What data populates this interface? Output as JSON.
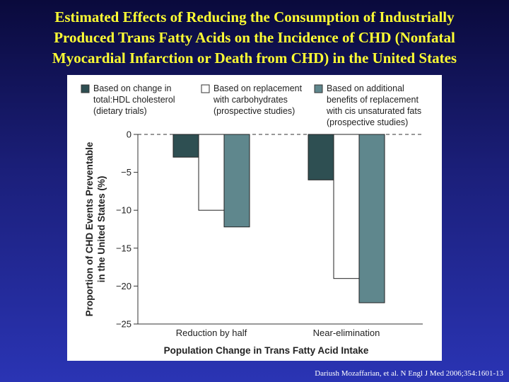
{
  "slide": {
    "title_lines": [
      "Estimated Effects of Reducing the Consumption of Industrially",
      "Produced Trans Fatty Acids on the Incidence of CHD (Nonfatal",
      "Myocardial Infarction or Death from CHD) in the United States"
    ],
    "citation": "Dariush Mozaffarian, et al. N Engl J Med 2006;354:1601-13"
  },
  "chart_data": {
    "type": "bar",
    "categories": [
      "Reduction by half",
      "Near-elimination"
    ],
    "series": [
      {
        "name": "Based on change in total:HDL cholesterol (dietary trials)",
        "legend_lines": [
          "Based on change in",
          "total:HDL cholesterol",
          "(dietary trials)"
        ],
        "color": "#2e4f52",
        "values": [
          -3.0,
          -6.0
        ]
      },
      {
        "name": "Based on replacement with carbohydrates (prospective studies)",
        "legend_lines": [
          "Based on replacement",
          "with carbohydrates",
          "(prospective studies)"
        ],
        "color": "#ffffff",
        "values": [
          -10.0,
          -19.0
        ]
      },
      {
        "name": "Based on additional benefits of replacement with cis unsaturated fats (prospective studies)",
        "legend_lines": [
          "Based on additional",
          "benefits of replacement",
          "with cis unsaturated fats",
          "(prospective studies)"
        ],
        "color": "#5f878d",
        "values": [
          -12.2,
          -22.2
        ]
      }
    ],
    "ylabel_lines": [
      "Proportion of CHD Events Preventable",
      "in the United States (%)"
    ],
    "xlabel": "Population Change in Trans Fatty Acid Intake",
    "ylim": [
      -25,
      0
    ],
    "yticks": [
      0,
      -5,
      -10,
      -15,
      -20,
      -25
    ],
    "ytick_labels": [
      "0",
      "−5",
      "−10",
      "−15",
      "−20",
      "−25"
    ],
    "zero_line": "dashed",
    "grid": false,
    "legend_position": "top"
  }
}
